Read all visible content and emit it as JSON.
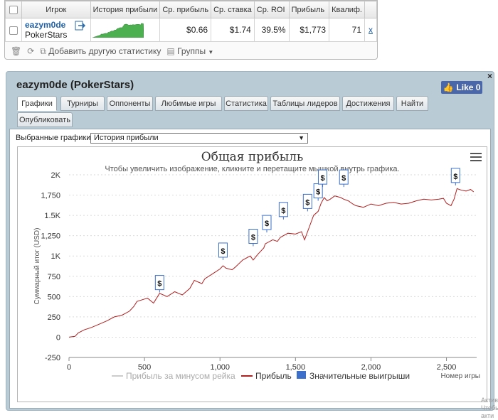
{
  "table": {
    "headers": [
      "Игрок",
      "История прибыли",
      "Ср. прибыль",
      "Ср. ставка",
      "Ср. ROI",
      "Прибыль",
      "Квалиф."
    ],
    "row": {
      "player": "eazym0de",
      "network": "PokerStars",
      "avg_profit": "$0.66",
      "avg_stake": "$1.74",
      "avg_roi": "39.5%",
      "profit": "$1,773",
      "count": "71",
      "remove": "x"
    }
  },
  "toolbar": {
    "add_label": "Добавить другую статистику",
    "groups_label": "Группы"
  },
  "panel": {
    "title": "eazym0de (PokerStars)",
    "like_label": "Like 0",
    "close": "×",
    "tabs": [
      "Графики",
      "Турниры",
      "Оппоненты",
      "Любимые игры",
      "Статистика",
      "Таблицы лидеров",
      "Достижения",
      "Найти",
      "Опубликовать"
    ],
    "active_tab": "Графики",
    "selector_label": "Выбранные графики:",
    "selector_value": "История прибыли"
  },
  "chart_data": {
    "type": "line",
    "title": "Общая прибыль",
    "subtitle": "Чтобы увеличить изображение, кликните и перетащите мышкой внутрь графика.",
    "ylabel": "Суммарный итог (USD)",
    "xlabel": "Номер игры",
    "xlim": [
      0,
      2700
    ],
    "ylim": [
      -250,
      2000
    ],
    "x_ticks": [
      "0",
      "500",
      "1,000",
      "1,500",
      "2,000",
      "2,500"
    ],
    "y_ticks": [
      "-250",
      "0",
      "250",
      "500",
      "750",
      "1K",
      "1,250",
      "1.5K",
      "1,750",
      "2K"
    ],
    "legend": [
      "Прибыль за минусом рейка",
      "Прибыль",
      "Значительные выигрыши"
    ],
    "series": [
      {
        "name": "Прибыль",
        "color": "#b02020",
        "x": [
          0,
          40,
          60,
          100,
          150,
          200,
          250,
          300,
          350,
          400,
          430,
          450,
          500,
          520,
          560,
          600,
          650,
          700,
          750,
          800,
          830,
          880,
          900,
          950,
          1000,
          1020,
          1040,
          1080,
          1100,
          1150,
          1200,
          1220,
          1250,
          1290,
          1300,
          1350,
          1380,
          1400,
          1450,
          1500,
          1540,
          1560,
          1600,
          1620,
          1650,
          1670,
          1690,
          1710,
          1730,
          1760,
          1800,
          1820,
          1850,
          1880,
          1900,
          1950,
          2000,
          2050,
          2100,
          2150,
          2200,
          2250,
          2300,
          2350,
          2400,
          2450,
          2480,
          2500,
          2530,
          2550,
          2570,
          2600,
          2630,
          2660,
          2680
        ],
        "values": [
          0,
          10,
          50,
          90,
          120,
          160,
          200,
          250,
          270,
          320,
          380,
          440,
          470,
          480,
          420,
          540,
          500,
          560,
          520,
          600,
          700,
          660,
          720,
          780,
          840,
          880,
          850,
          830,
          860,
          950,
          1000,
          950,
          1020,
          1100,
          1150,
          1200,
          1180,
          1230,
          1280,
          1270,
          1300,
          1200,
          1400,
          1500,
          1550,
          1650,
          1720,
          1680,
          1700,
          1740,
          1720,
          1700,
          1680,
          1640,
          1620,
          1600,
          1640,
          1620,
          1650,
          1660,
          1640,
          1650,
          1680,
          1700,
          1690,
          1700,
          1710,
          1650,
          1620,
          1700,
          1830,
          1810,
          1800,
          1820,
          1790
        ]
      }
    ],
    "big_wins": [
      {
        "x": 600,
        "y": 550
      },
      {
        "x": 1020,
        "y": 950
      },
      {
        "x": 1220,
        "y": 1120
      },
      {
        "x": 1310,
        "y": 1290
      },
      {
        "x": 1420,
        "y": 1450
      },
      {
        "x": 1580,
        "y": 1550
      },
      {
        "x": 1650,
        "y": 1680
      },
      {
        "x": 1680,
        "y": 1850
      },
      {
        "x": 1820,
        "y": 1850
      },
      {
        "x": 2560,
        "y": 1870
      }
    ]
  },
  "watermark": {
    "line1": "Активаци",
    "line2": "Чтобы акти"
  }
}
